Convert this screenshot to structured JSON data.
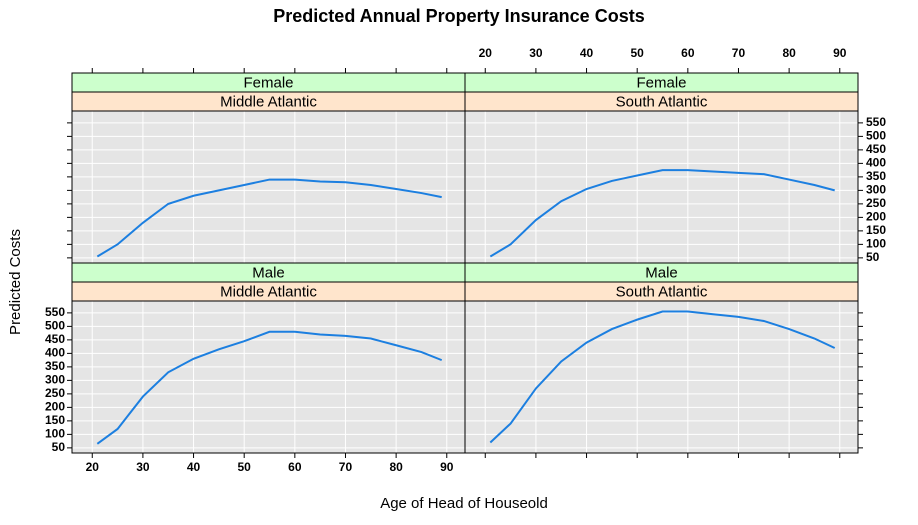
{
  "chart_data": {
    "type": "line",
    "title": "Predicted Annual Property Insurance Costs",
    "x_label": "Age of Head of Houseold",
    "y_label": "Predicted Costs",
    "xlim": [
      16,
      93.6
    ],
    "ylim": [
      31,
      594
    ],
    "xticks": [
      20,
      30,
      40,
      50,
      60,
      70,
      80,
      90
    ],
    "yticks": [
      50,
      100,
      150,
      200,
      250,
      300,
      350,
      400,
      450,
      500,
      550
    ],
    "grid": true,
    "color": "#1c7fe0",
    "panels": [
      {
        "strips": [
          "Female",
          "Middle Atlantic"
        ],
        "x": [
          21,
          25,
          30,
          35,
          40,
          45,
          50,
          55,
          60,
          65,
          70,
          75,
          80,
          85,
          89
        ],
        "values": [
          55,
          100,
          180,
          250,
          280,
          300,
          320,
          340,
          340,
          333,
          330,
          320,
          305,
          290,
          275
        ]
      },
      {
        "strips": [
          "Female",
          "South Atlantic"
        ],
        "x": [
          21,
          25,
          30,
          35,
          40,
          45,
          50,
          55,
          60,
          65,
          70,
          75,
          80,
          85,
          89
        ],
        "values": [
          55,
          100,
          190,
          260,
          305,
          335,
          355,
          375,
          375,
          370,
          365,
          360,
          340,
          320,
          300
        ]
      },
      {
        "strips": [
          "Male",
          "Middle Atlantic"
        ],
        "x": [
          21,
          25,
          30,
          35,
          40,
          45,
          50,
          55,
          60,
          65,
          70,
          75,
          80,
          85,
          89
        ],
        "values": [
          65,
          120,
          240,
          330,
          380,
          415,
          445,
          480,
          480,
          470,
          465,
          455,
          430,
          405,
          375
        ]
      },
      {
        "strips": [
          "Male",
          "South Atlantic"
        ],
        "x": [
          21,
          25,
          30,
          35,
          40,
          45,
          50,
          55,
          60,
          65,
          70,
          75,
          80,
          85,
          89
        ],
        "values": [
          70,
          140,
          270,
          370,
          440,
          490,
          525,
          555,
          555,
          545,
          535,
          520,
          490,
          455,
          420
        ]
      }
    ]
  }
}
